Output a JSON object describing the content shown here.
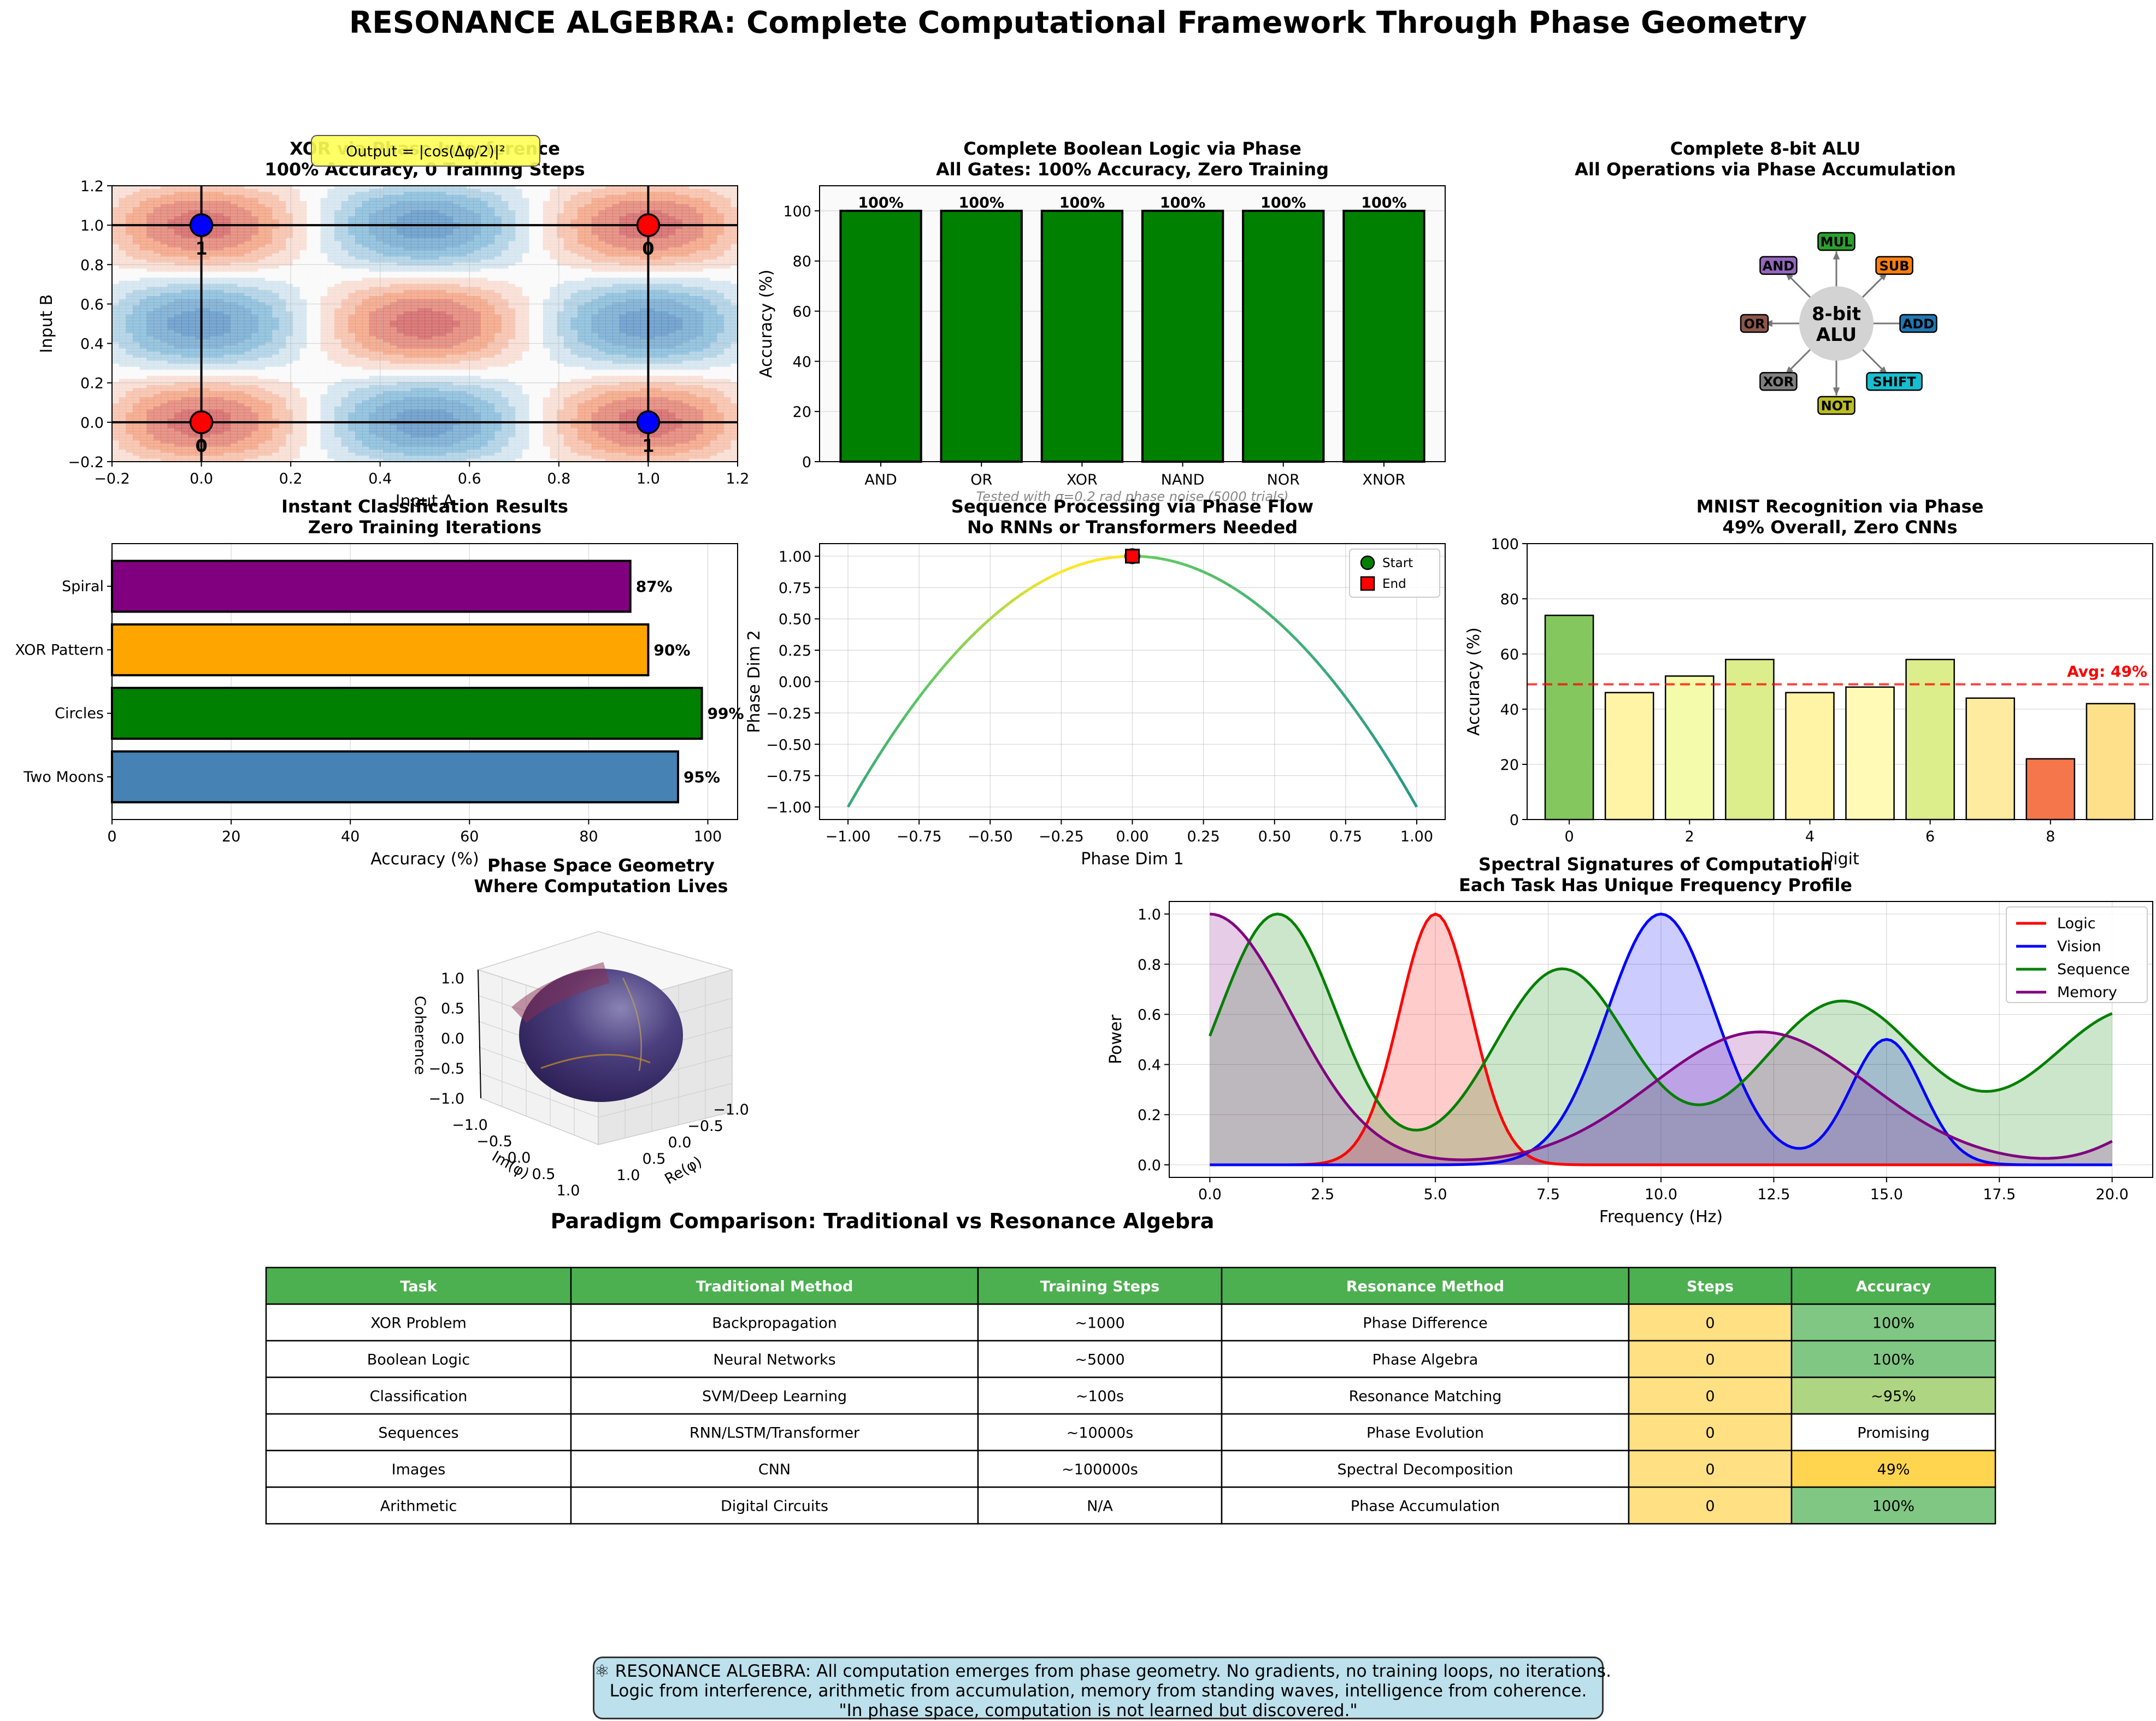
{
  "page_title": "RESONANCE ALGEBRA: Complete Computational Framework Through Phase Geometry",
  "footer": {
    "line1": "⚛ RESONANCE ALGEBRA: All computation emerges from phase geometry. No gradients, no training loops, no iterations.",
    "line2": "Logic from interference, arithmetic from accumulation, memory from standing waves, intelligence from coherence.",
    "line3": "\"In phase space, computation is not learned but discovered.\""
  },
  "chart_data": [
    {
      "id": "xor",
      "type": "contour",
      "title": "XOR via Phase Interference",
      "subtitle": "100% Accuracy, 0 Training Steps",
      "annotation": "Output = |cos(Δφ/2)|²",
      "xlabel": "Input A",
      "ylabel": "Input B",
      "xlim": [
        -0.2,
        1.2
      ],
      "ylim": [
        -0.2,
        1.2
      ],
      "xticks": [
        -0.2,
        0.0,
        0.2,
        0.4,
        0.6,
        0.8,
        1.0,
        1.2
      ],
      "yticks": [
        -0.2,
        0.0,
        0.2,
        0.4,
        0.6,
        0.8,
        1.0,
        1.2
      ],
      "points": [
        {
          "a": 0,
          "b": 0,
          "output": 0,
          "color": "#ff0000"
        },
        {
          "a": 1,
          "b": 0,
          "output": 1,
          "color": "#0000ff"
        },
        {
          "a": 0,
          "b": 1,
          "output": 1,
          "color": "#0000ff"
        },
        {
          "a": 1,
          "b": 1,
          "output": 0,
          "color": "#ff0000"
        }
      ]
    },
    {
      "id": "logic",
      "type": "bar",
      "title": "Complete Boolean Logic via Phase",
      "subtitle": "All Gates: 100% Accuracy, Zero Training",
      "categories": [
        "AND",
        "OR",
        "XOR",
        "NAND",
        "NOR",
        "XNOR"
      ],
      "values": [
        100,
        100,
        100,
        100,
        100,
        100
      ],
      "labels": [
        "100%",
        "100%",
        "100%",
        "100%",
        "100%",
        "100%"
      ],
      "ylabel": "Accuracy (%)",
      "ylim": [
        0,
        110
      ],
      "yticks": [
        0,
        20,
        40,
        60,
        80,
        100
      ],
      "bar_color": "#008000",
      "note": "Tested with σ=0.2 rad phase noise (5000 trials)"
    },
    {
      "id": "alu",
      "type": "diagram",
      "title": "Complete 8-bit ALU",
      "subtitle": "All Operations via Phase Accumulation",
      "center_label": [
        "8-bit",
        "ALU"
      ],
      "ops": [
        {
          "label": "ADD",
          "color": "#1f77b4",
          "angle": 0
        },
        {
          "label": "SUB",
          "color": "#ff7f0e",
          "angle": 45
        },
        {
          "label": "MUL",
          "color": "#2ca02c",
          "angle": 90
        },
        {
          "label": "AND",
          "color": "#9467bd",
          "angle": 135
        },
        {
          "label": "OR",
          "color": "#8c564b",
          "angle": 180
        },
        {
          "label": "XOR",
          "color": "#7f7f7f",
          "angle": 225
        },
        {
          "label": "NOT",
          "color": "#bcbd22",
          "angle": 270
        },
        {
          "label": "SHIFT",
          "color": "#17becf",
          "angle": 315
        }
      ]
    },
    {
      "id": "classification",
      "type": "bar",
      "orientation": "horizontal",
      "title": "Instant Classification Results",
      "subtitle": "Zero Training Iterations",
      "categories": [
        "Two Moons",
        "Circles",
        "XOR Pattern",
        "Spiral"
      ],
      "values": [
        95,
        99,
        90,
        87
      ],
      "labels": [
        "95%",
        "99%",
        "90%",
        "87%"
      ],
      "colors": [
        "#4682b4",
        "#008000",
        "#ffa500",
        "#800080"
      ],
      "xlabel": "Accuracy (%)",
      "xlim": [
        0,
        105
      ],
      "xticks": [
        0,
        20,
        40,
        60,
        80,
        100
      ]
    },
    {
      "id": "sequence",
      "type": "line",
      "title": "Sequence Processing via Phase Flow",
      "subtitle": "No RNNs or Transformers Needed",
      "xlabel": "Phase Dim 1",
      "ylabel": "Phase Dim 2",
      "xlim": [
        -1.1,
        1.1
      ],
      "ylim": [
        -1.1,
        1.1
      ],
      "xticks": [
        -1.0,
        -0.75,
        -0.5,
        -0.25,
        0.0,
        0.25,
        0.5,
        0.75,
        1.0
      ],
      "yticks": [
        -1.0,
        -0.75,
        -0.5,
        -0.25,
        0.0,
        0.25,
        0.5,
        0.75,
        1.0
      ],
      "curve": "y = 1 - 2x², x from -1 to 1",
      "start": [
        0,
        1
      ],
      "end": [
        0,
        1
      ],
      "legend": [
        "Start",
        "End"
      ]
    },
    {
      "id": "mnist",
      "type": "bar",
      "title": "MNIST Recognition via Phase",
      "subtitle": "49% Overall, Zero CNNs",
      "categories": [
        0,
        1,
        2,
        3,
        4,
        5,
        6,
        7,
        8,
        9
      ],
      "values": [
        74,
        46,
        52,
        58,
        46,
        48,
        58,
        44,
        22,
        42
      ],
      "colors": [
        "#84c75f",
        "#fff3a5",
        "#f4fbaa",
        "#dcee8c",
        "#fff3a5",
        "#fffbb6",
        "#dcee8c",
        "#ffeba0",
        "#f4764a",
        "#ffe08a"
      ],
      "xlabel": "Digit",
      "ylabel": "Accuracy (%)",
      "ylim": [
        0,
        100
      ],
      "xticks": [
        0,
        2,
        4,
        6,
        8
      ],
      "yticks": [
        0,
        20,
        40,
        60,
        80,
        100
      ],
      "avg": 49,
      "avg_label": "Avg: 49%"
    },
    {
      "id": "sphere",
      "type": "surface3d",
      "title": "Phase Space Geometry",
      "subtitle": "Where Computation Lives",
      "xlabel": "Re(φ)",
      "ylabel": "Im(φ)",
      "zlabel": "Coherence",
      "xticks": [
        "1.0",
        "0.5",
        "0.0",
        "-0.5",
        "-1.0"
      ],
      "yticks": [
        "-1.0",
        "-0.5",
        "0.0",
        "0.5",
        "1.0"
      ],
      "zticks": [
        "1.0",
        "0.5",
        "0.0",
        "-0.5",
        "-1.0"
      ]
    },
    {
      "id": "spectral",
      "type": "area",
      "title": "Spectral Signatures of Computation",
      "subtitle": "Each Task Has Unique Frequency Profile",
      "xlabel": "Frequency (Hz)",
      "ylabel": "Power",
      "xlim": [
        -0.9,
        20.9
      ],
      "ylim": [
        -0.05,
        1.05
      ],
      "xticks": [
        0.0,
        2.5,
        5.0,
        7.5,
        10.0,
        12.5,
        15.0,
        17.5,
        20.0
      ],
      "yticks": [
        0.0,
        0.2,
        0.4,
        0.6,
        0.8,
        1.0
      ],
      "series": [
        {
          "name": "Logic",
          "color": "#ff0000",
          "components": [
            {
              "amp": 1.0,
              "mu": 5.0,
              "sigma": 0.8
            }
          ]
        },
        {
          "name": "Vision",
          "color": "#0000ff",
          "components": [
            {
              "amp": 1.0,
              "mu": 10.0,
              "sigma": 1.2
            },
            {
              "amp": 0.5,
              "mu": 15.0,
              "sigma": 0.8
            }
          ]
        },
        {
          "name": "Sequence",
          "color": "#008000",
          "components": [
            {
              "amp": 1.0,
              "mu": 1.5,
              "sigma": 1.3
            },
            {
              "amp": 0.78,
              "mu": 7.8,
              "sigma": 1.5
            },
            {
              "amp": 0.65,
              "mu": 14.0,
              "sigma": 1.8
            },
            {
              "amp": 0.62,
              "mu": 20.5,
              "sigma": 2.0
            }
          ]
        },
        {
          "name": "Memory",
          "color": "#800080",
          "components": [
            {
              "amp": 1.0,
              "mu": 0.0,
              "sigma": 1.8
            },
            {
              "amp": 0.53,
              "mu": 12.2,
              "sigma": 2.4
            },
            {
              "amp": 0.2,
              "mu": 21.5,
              "sigma": 1.2
            }
          ]
        }
      ]
    },
    {
      "id": "comparison",
      "type": "table",
      "title": "Paradigm Comparison: Traditional vs Resonance Algebra",
      "columns": [
        "Task",
        "Traditional Method",
        "Training Steps",
        "Resonance Method",
        "Steps",
        "Accuracy"
      ],
      "rows": [
        [
          "XOR Problem",
          "Backpropagation",
          "~1000",
          "Phase Difference",
          "0",
          "100%"
        ],
        [
          "Boolean Logic",
          "Neural Networks",
          "~5000",
          "Phase Algebra",
          "0",
          "100%"
        ],
        [
          "Classification",
          "SVM/Deep Learning",
          "~100s",
          "Resonance Matching",
          "0",
          "~95%"
        ],
        [
          "Sequences",
          "RNN/LSTM/Transformer",
          "~10000s",
          "Phase Evolution",
          "0",
          "Promising"
        ],
        [
          "Images",
          "CNN",
          "~100000s",
          "Spectral Decomposition",
          "0",
          "49%"
        ],
        [
          "Arithmetic",
          "Digital Circuits",
          "N/A",
          "Phase Accumulation",
          "0",
          "100%"
        ]
      ],
      "header_color": "#4caf50",
      "steps_color": "#ffe082",
      "accuracy_colors": [
        "#81c784",
        "#81c784",
        "#aed581",
        "#ffffff",
        "#ffd54f",
        "#81c784"
      ]
    }
  ]
}
